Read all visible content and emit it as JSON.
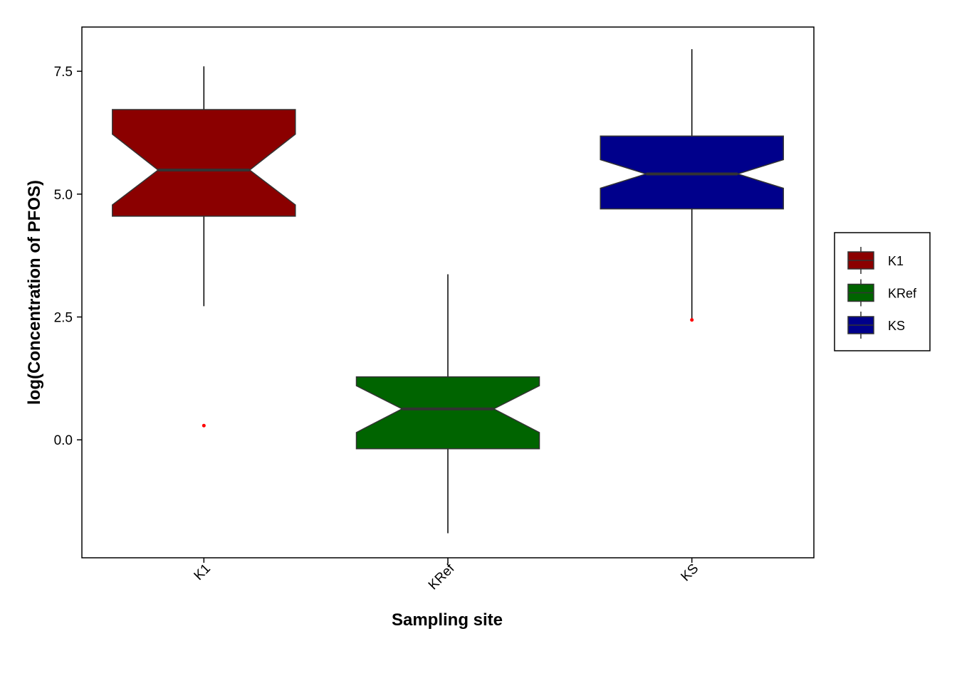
{
  "chart_data": {
    "type": "box",
    "notched": true,
    "title": "",
    "xlabel": "Sampling site",
    "ylabel": "log(Concentration of PFOS)",
    "ylim": [
      -2.4,
      8.4
    ],
    "yticks": [
      0.0,
      2.5,
      5.0,
      7.5
    ],
    "ytick_labels": [
      "0.0",
      "2.5",
      "5.0",
      "7.5"
    ],
    "categories": [
      "K1",
      "KRef",
      "KS"
    ],
    "boxes": [
      {
        "category": "K1",
        "color": "#8B0000",
        "whisker_low": 2.72,
        "q1": 4.55,
        "notch_low": 4.78,
        "median": 5.49,
        "notch_high": 6.22,
        "q3": 6.72,
        "whisker_high": 7.6,
        "outliers": [
          0.29
        ]
      },
      {
        "category": "KRef",
        "color": "#006400",
        "whisker_low": -1.9,
        "q1": -0.18,
        "notch_low": 0.15,
        "median": 0.63,
        "notch_high": 1.1,
        "q3": 1.28,
        "whisker_high": 3.37,
        "outliers": []
      },
      {
        "category": "KS",
        "color": "#00008B",
        "whisker_low": 2.47,
        "q1": 4.7,
        "notch_low": 5.12,
        "median": 5.41,
        "notch_high": 5.7,
        "q3": 6.18,
        "whisker_high": 7.95,
        "outliers": [
          2.44
        ]
      }
    ],
    "legend": {
      "position": "right",
      "entries": [
        {
          "label": "K1",
          "color": "#8B0000"
        },
        {
          "label": "KRef",
          "color": "#006400"
        },
        {
          "label": "KS",
          "color": "#00008B"
        }
      ]
    },
    "outlier_color": "#FF0000",
    "line_color": "#333333",
    "grid": false
  }
}
